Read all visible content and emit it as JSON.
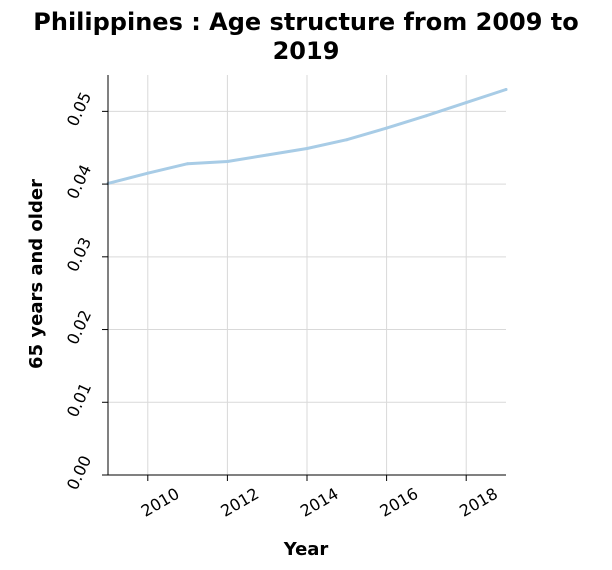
{
  "chart_data": {
    "type": "line",
    "title_line1": "Philippines : Age structure from 2009 to",
    "title_line2": "2019",
    "xlabel": "Year",
    "ylabel": "65 years and older",
    "xlim": [
      2009,
      2019
    ],
    "ylim": [
      0,
      0.055
    ],
    "x_ticks": [
      2010,
      2012,
      2014,
      2016,
      2018
    ],
    "y_ticks": [
      0.0,
      0.01,
      0.02,
      0.03,
      0.04,
      0.05
    ],
    "y_tick_labels": [
      "0.00",
      "0.01",
      "0.02",
      "0.03",
      "0.04",
      "0.05"
    ],
    "grid": true,
    "series": [
      {
        "color": "#a8cce6",
        "x": [
          2009,
          2010,
          2011,
          2012,
          2013,
          2014,
          2015,
          2016,
          2017,
          2018,
          2019
        ],
        "values": [
          0.0401,
          0.0415,
          0.0428,
          0.0431,
          0.044,
          0.0449,
          0.0461,
          0.0477,
          0.0494,
          0.0512,
          0.053
        ]
      }
    ]
  }
}
